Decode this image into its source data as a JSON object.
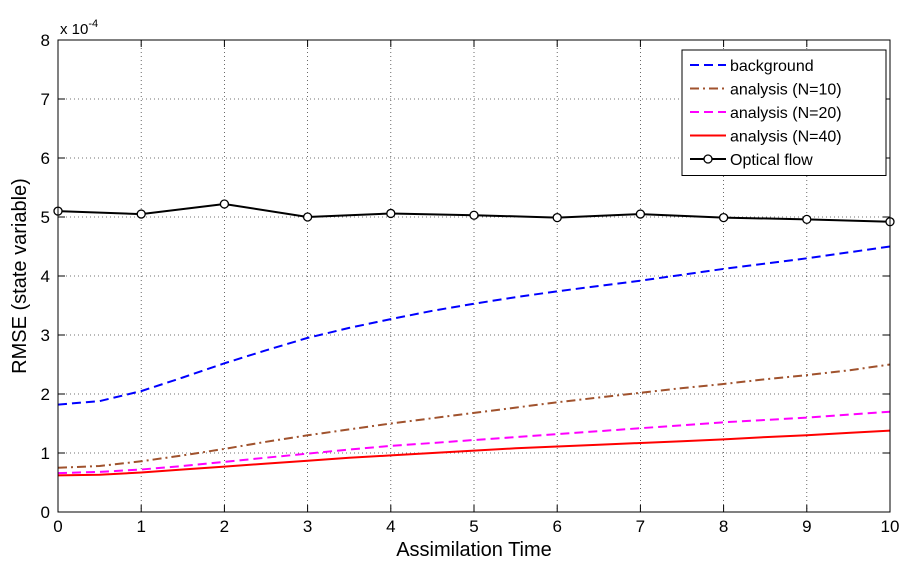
{
  "chart_data": {
    "type": "line",
    "xlabel": "Assimilation Time",
    "ylabel": "RMSE (state variable)",
    "y_multiplier_base": "x 10",
    "y_multiplier_exponent": "-4",
    "xlim": [
      0,
      10
    ],
    "ylim": [
      0,
      8
    ],
    "x_ticks": [
      "0",
      "1",
      "2",
      "3",
      "4",
      "5",
      "6",
      "7",
      "8",
      "9",
      "10"
    ],
    "y_ticks": [
      "0",
      "1",
      "2",
      "3",
      "4",
      "5",
      "6",
      "7",
      "8"
    ],
    "grid": true,
    "legend_position": "top-right",
    "x": [
      0,
      0.5,
      1,
      1.5,
      2,
      2.5,
      3,
      3.5,
      4,
      4.5,
      5,
      5.5,
      6,
      6.5,
      7,
      7.5,
      8,
      8.5,
      9,
      9.5,
      10
    ],
    "series": [
      {
        "name": "background",
        "color": "#0000ff",
        "style": "dashed",
        "values": [
          1.82,
          1.88,
          2.05,
          2.28,
          2.52,
          2.74,
          2.95,
          3.12,
          3.27,
          3.41,
          3.53,
          3.64,
          3.74,
          3.83,
          3.92,
          4.02,
          4.12,
          4.21,
          4.3,
          4.4,
          4.5
        ]
      },
      {
        "name": "analysis (N=10)",
        "color": "#a0522d",
        "style": "dashdot",
        "values": [
          0.75,
          0.78,
          0.86,
          0.96,
          1.07,
          1.19,
          1.3,
          1.4,
          1.5,
          1.59,
          1.68,
          1.77,
          1.86,
          1.94,
          2.02,
          2.1,
          2.17,
          2.25,
          2.32,
          2.4,
          2.5
        ]
      },
      {
        "name": "analysis (N=20)",
        "color": "#ff00ff",
        "style": "dashed",
        "values": [
          0.66,
          0.68,
          0.72,
          0.78,
          0.85,
          0.92,
          0.99,
          1.06,
          1.12,
          1.17,
          1.22,
          1.27,
          1.32,
          1.37,
          1.42,
          1.47,
          1.52,
          1.56,
          1.6,
          1.65,
          1.7
        ]
      },
      {
        "name": "analysis (N=40)",
        "color": "#ff0000",
        "style": "solid",
        "values": [
          0.62,
          0.63,
          0.67,
          0.72,
          0.77,
          0.82,
          0.87,
          0.92,
          0.96,
          1.0,
          1.04,
          1.08,
          1.11,
          1.14,
          1.17,
          1.2,
          1.23,
          1.27,
          1.3,
          1.34,
          1.38
        ]
      },
      {
        "name": "Optical flow",
        "color": "#000000",
        "style": "solid-circle-markers",
        "x": [
          0,
          1,
          2,
          3,
          4,
          5,
          6,
          7,
          8,
          9,
          10
        ],
        "values": [
          5.1,
          5.05,
          5.22,
          5.0,
          5.06,
          5.03,
          4.99,
          5.05,
          4.99,
          4.96,
          4.92
        ]
      }
    ]
  }
}
